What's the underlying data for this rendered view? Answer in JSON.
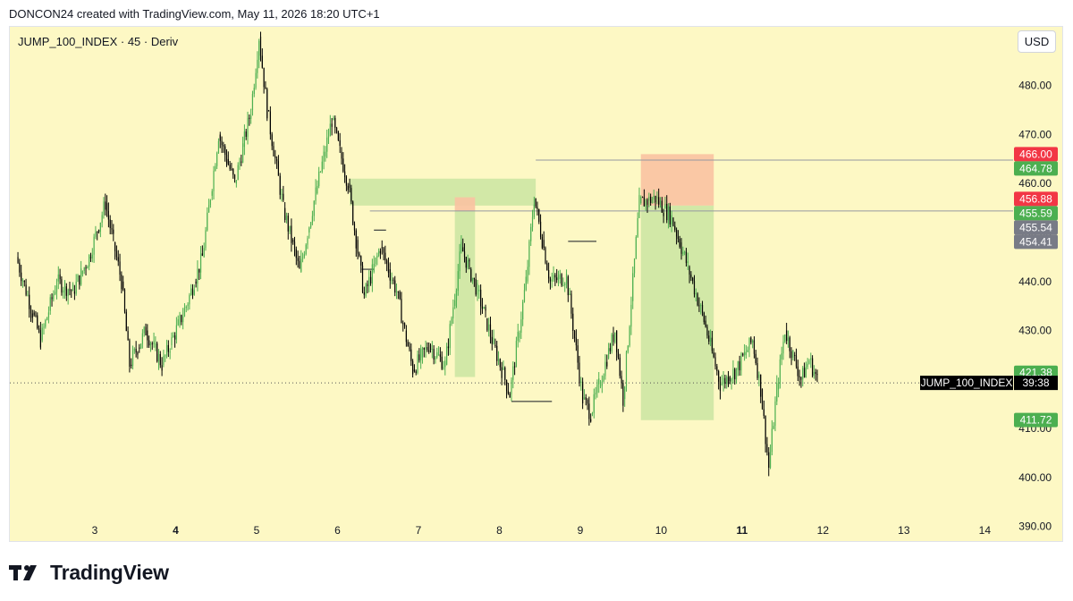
{
  "header": {
    "attribution": "DONCON24 created with TradingView.com, May 11, 2026 18:20 UTC+1"
  },
  "legend": {
    "symbol": "JUMP_100_INDEX · 45 · Deriv"
  },
  "currency": {
    "label": "USD"
  },
  "footer": {
    "brand": "TradingView",
    "logo_icon": "tradingview-logo-icon"
  },
  "colors": {
    "background": "#fdf8c4",
    "up": "#4caf50",
    "down": "#000000",
    "green_zone": "#cde6a4",
    "red_zone": "#f9c2a2",
    "red_label": "#f23645",
    "green_label": "#4caf50",
    "gray_label": "#787b86"
  },
  "chart_data": {
    "type": "candlestick",
    "symbol": "JUMP_100_INDEX",
    "interval": "45",
    "source": "Deriv",
    "x_tick_labels": [
      {
        "label": "3",
        "index": 9.5,
        "bold": false
      },
      {
        "label": "4",
        "index": 19.5,
        "bold": true
      },
      {
        "label": "5",
        "index": 29.5,
        "bold": false
      },
      {
        "label": "6",
        "index": 39.5,
        "bold": false
      },
      {
        "label": "7",
        "index": 49.5,
        "bold": false
      },
      {
        "label": "8",
        "index": 59.5,
        "bold": false
      },
      {
        "label": "9",
        "index": 69.5,
        "bold": false
      },
      {
        "label": "10",
        "index": 79.5,
        "bold": false
      },
      {
        "label": "11",
        "index": 89.5,
        "bold": true
      },
      {
        "label": "12",
        "index": 99.5,
        "bold": false
      },
      {
        "label": "13",
        "index": 109.5,
        "bold": false
      },
      {
        "label": "14",
        "index": 119.5,
        "bold": false
      }
    ],
    "y_ticks": [
      390,
      400,
      410,
      420,
      430,
      440,
      450,
      460,
      470,
      480
    ],
    "ylim": [
      387,
      492
    ],
    "xlim": [
      -1,
      123
    ],
    "close_path": [
      {
        "i": 0,
        "v": 445
      },
      {
        "i": 3,
        "v": 428
      },
      {
        "i": 5,
        "v": 440
      },
      {
        "i": 7,
        "v": 438
      },
      {
        "i": 9,
        "v": 445
      },
      {
        "i": 11,
        "v": 456
      },
      {
        "i": 13,
        "v": 440
      },
      {
        "i": 14,
        "v": 423
      },
      {
        "i": 16,
        "v": 430
      },
      {
        "i": 18,
        "v": 423
      },
      {
        "i": 21,
        "v": 435
      },
      {
        "i": 23,
        "v": 445
      },
      {
        "i": 25,
        "v": 470
      },
      {
        "i": 27,
        "v": 460
      },
      {
        "i": 29,
        "v": 475
      },
      {
        "i": 30,
        "v": 490
      },
      {
        "i": 31,
        "v": 475
      },
      {
        "i": 33,
        "v": 455
      },
      {
        "i": 35,
        "v": 442
      },
      {
        "i": 37,
        "v": 458
      },
      {
        "i": 39,
        "v": 473
      },
      {
        "i": 41,
        "v": 460
      },
      {
        "i": 43,
        "v": 437
      },
      {
        "i": 45,
        "v": 447
      },
      {
        "i": 47,
        "v": 438
      },
      {
        "i": 49,
        "v": 422
      },
      {
        "i": 51,
        "v": 427
      },
      {
        "i": 53,
        "v": 423
      },
      {
        "i": 55,
        "v": 447
      },
      {
        "i": 57,
        "v": 438
      },
      {
        "i": 59,
        "v": 427
      },
      {
        "i": 61,
        "v": 417
      },
      {
        "i": 63,
        "v": 440
      },
      {
        "i": 64,
        "v": 457
      },
      {
        "i": 66,
        "v": 440
      },
      {
        "i": 68,
        "v": 441
      },
      {
        "i": 70,
        "v": 416
      },
      {
        "i": 71,
        "v": 413
      },
      {
        "i": 74,
        "v": 430
      },
      {
        "i": 75,
        "v": 416
      },
      {
        "i": 77,
        "v": 456
      },
      {
        "i": 79,
        "v": 457
      },
      {
        "i": 81,
        "v": 453
      },
      {
        "i": 83,
        "v": 443
      },
      {
        "i": 85,
        "v": 432
      },
      {
        "i": 87,
        "v": 419
      },
      {
        "i": 89,
        "v": 422
      },
      {
        "i": 91,
        "v": 428
      },
      {
        "i": 92,
        "v": 418
      },
      {
        "i": 93,
        "v": 402
      },
      {
        "i": 94,
        "v": 418
      },
      {
        "i": 95,
        "v": 430
      },
      {
        "i": 97,
        "v": 420
      },
      {
        "i": 98,
        "v": 424
      },
      {
        "i": 99,
        "v": 420
      }
    ],
    "wick_extremes": {
      "high": 491,
      "low": 400
    },
    "zones": [
      {
        "name": "green-zone-1",
        "color": "green",
        "i0": 41,
        "i1": 64,
        "y0": 455.5,
        "y1": 461
      },
      {
        "name": "red-zone-1",
        "color": "red",
        "i0": 54,
        "i1": 56.5,
        "y0": 454.4,
        "y1": 457.2
      },
      {
        "name": "green-zone-2",
        "color": "green",
        "i0": 54,
        "i1": 56.5,
        "y0": 420.5,
        "y1": 454.4
      },
      {
        "name": "red-zone-2",
        "color": "red",
        "i0": 77,
        "i1": 86,
        "y0": 455.5,
        "y1": 466
      },
      {
        "name": "green-zone-3",
        "color": "green",
        "i0": 77,
        "i1": 86,
        "y0": 411.7,
        "y1": 455.5
      }
    ],
    "level_lines": [
      {
        "name": "level-464-78",
        "value": 464.78,
        "i0": 64,
        "i1": 123
      },
      {
        "name": "level-454-41",
        "value": 454.41,
        "i0": 43.5,
        "i1": 123
      },
      {
        "name": "level-448",
        "value": 448.2,
        "i0": 68,
        "i1": 71.5
      },
      {
        "name": "level-442-5",
        "value": 442.5,
        "i0": 42.5,
        "i1": 44
      },
      {
        "name": "level-450-5",
        "value": 450.5,
        "i0": 44,
        "i1": 45.5
      },
      {
        "name": "level-415-5",
        "value": 415.5,
        "i0": 61,
        "i1": 66
      }
    ],
    "price_labels": [
      {
        "value": 466.0,
        "text": "466.00",
        "color": "red"
      },
      {
        "value": 464.78,
        "text": "464.78",
        "color": "green"
      },
      {
        "value": 456.88,
        "text": "456.88",
        "color": "red"
      },
      {
        "value": 455.59,
        "text": "455.59",
        "color": "green"
      },
      {
        "value": 455.54,
        "text": "455.54",
        "color": "gray"
      },
      {
        "value": 454.41,
        "text": "454.41",
        "color": "gray"
      },
      {
        "value": 421.38,
        "text": "421.38",
        "color": "green"
      },
      {
        "value": 411.72,
        "text": "411.72",
        "color": "green"
      }
    ],
    "current_price": {
      "value": 419.3,
      "tag": "JUMP_100_INDEX",
      "countdown": "39:38"
    }
  }
}
